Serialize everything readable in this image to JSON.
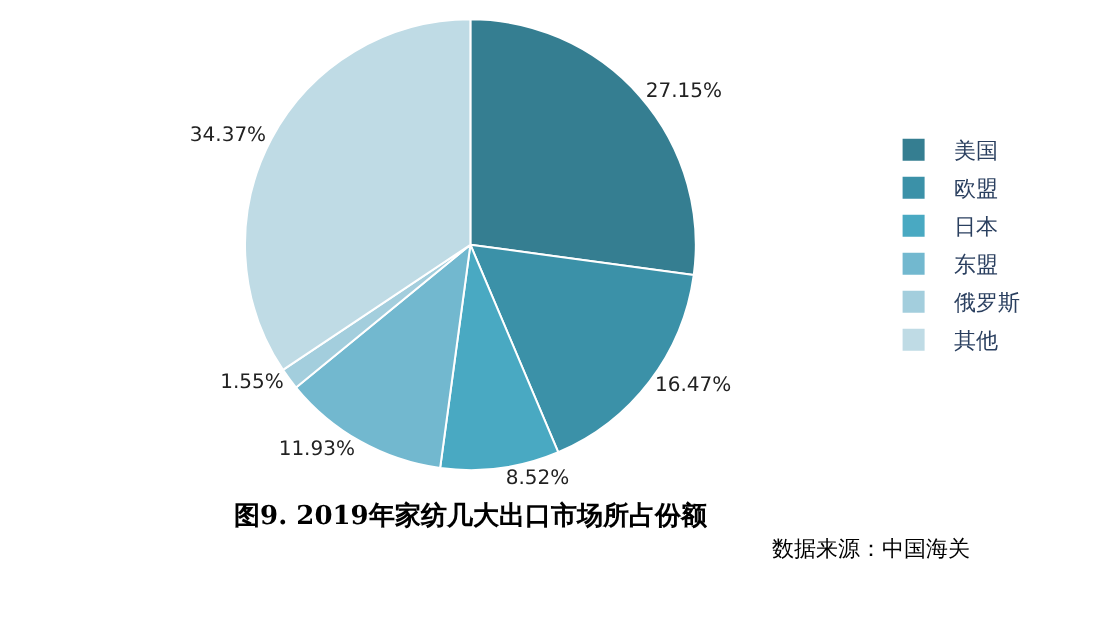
{
  "chart_data": {
    "type": "pie",
    "title": "图9. 2019年家纺几大出口市场所占份额",
    "categories": [
      "美国",
      "欧盟",
      "日本",
      "东盟",
      "俄罗斯",
      "其他"
    ],
    "values": [
      27.15,
      16.47,
      8.52,
      11.93,
      1.55,
      34.37
    ],
    "colors": [
      "#357e91",
      "#3b91a8",
      "#49a9c2",
      "#72b8cf",
      "#a3cedd",
      "#bfdbe5"
    ],
    "value_labels": [
      "27.15%",
      "16.47%",
      "8.52%",
      "11.93%",
      "1.55%",
      "34.37%"
    ],
    "legend": "right",
    "annotations": [
      "数据来源：中国海关"
    ]
  }
}
